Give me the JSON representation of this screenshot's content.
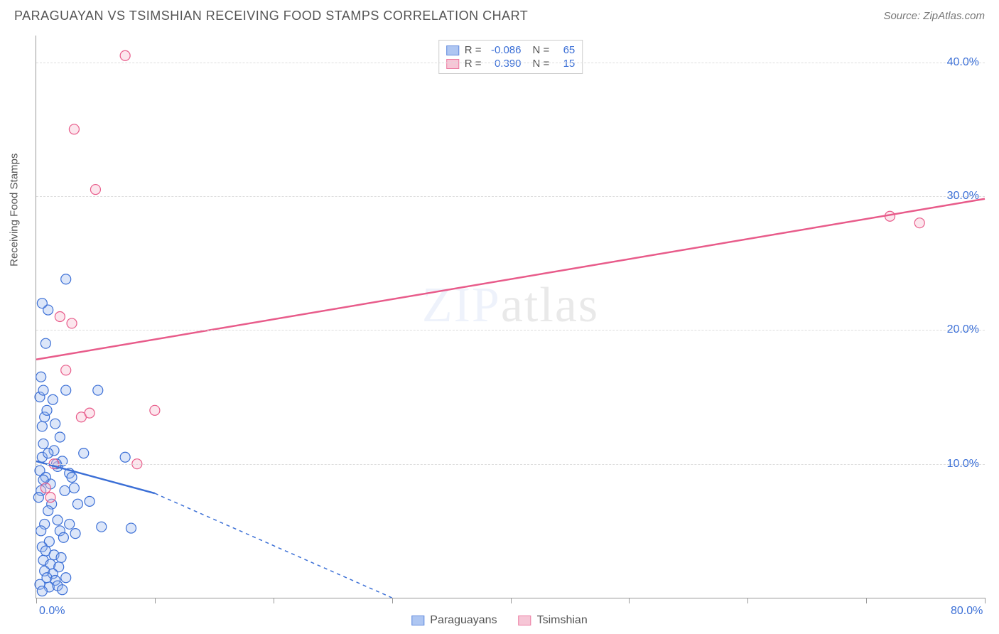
{
  "header": {
    "title": "PARAGUAYAN VS TSIMSHIAN RECEIVING FOOD STAMPS CORRELATION CHART",
    "source": "Source: ZipAtlas.com"
  },
  "watermark": {
    "part1": "ZIP",
    "part2": "atlas"
  },
  "chart": {
    "type": "scatter",
    "y_axis_title": "Receiving Food Stamps",
    "xlim": [
      0,
      80
    ],
    "ylim": [
      0,
      42
    ],
    "x_labels": [
      {
        "value": 0,
        "text": "0.0%"
      },
      {
        "value": 80,
        "text": "80.0%"
      }
    ],
    "x_ticks": [
      0,
      10,
      20,
      30,
      40,
      50,
      60,
      70,
      80
    ],
    "y_gridlines": [
      10,
      20,
      30,
      40
    ],
    "y_labels": [
      {
        "value": 10,
        "text": "10.0%"
      },
      {
        "value": 20,
        "text": "20.0%"
      },
      {
        "value": 30,
        "text": "30.0%"
      },
      {
        "value": 40,
        "text": "40.0%"
      }
    ],
    "background_color": "#ffffff",
    "grid_color": "#dddddd",
    "axis_color": "#999999",
    "label_color": "#3b6fd6",
    "marker_radius": 7,
    "marker_stroke_width": 1.2,
    "marker_fill_opacity": 0.35,
    "trend_line_width": 2.5,
    "trend_dash": "5,5",
    "series": [
      {
        "name": "Paraguayans",
        "color_stroke": "#3b6fd6",
        "color_fill": "#9ab8ef",
        "r_label": "R =",
        "r_value": "-0.086",
        "n_label": "N =",
        "n_value": "65",
        "trend": {
          "x1": 0,
          "y1": 10.2,
          "x2": 10,
          "y2": 7.8,
          "extend_x2": 30,
          "extend_y2": 0
        },
        "points": [
          [
            0.3,
            9.5
          ],
          [
            0.5,
            10.5
          ],
          [
            0.4,
            8.0
          ],
          [
            0.6,
            11.5
          ],
          [
            0.8,
            9.0
          ],
          [
            0.2,
            7.5
          ],
          [
            0.5,
            12.8
          ],
          [
            0.7,
            13.5
          ],
          [
            0.9,
            14.0
          ],
          [
            0.3,
            15.0
          ],
          [
            0.6,
            15.5
          ],
          [
            0.4,
            16.5
          ],
          [
            0.8,
            19.0
          ],
          [
            1.5,
            11.0
          ],
          [
            1.8,
            9.8
          ],
          [
            1.2,
            8.5
          ],
          [
            1.6,
            13.0
          ],
          [
            1.4,
            14.8
          ],
          [
            2.0,
            12.0
          ],
          [
            2.2,
            10.2
          ],
          [
            2.4,
            8.0
          ],
          [
            2.5,
            15.5
          ],
          [
            2.8,
            9.3
          ],
          [
            1.0,
            21.5
          ],
          [
            0.5,
            22.0
          ],
          [
            3.0,
            9.0
          ],
          [
            3.2,
            8.2
          ],
          [
            3.5,
            7.0
          ],
          [
            1.3,
            7.0
          ],
          [
            1.0,
            6.5
          ],
          [
            0.7,
            5.5
          ],
          [
            0.4,
            5.0
          ],
          [
            1.8,
            5.8
          ],
          [
            2.0,
            5.0
          ],
          [
            2.3,
            4.5
          ],
          [
            1.1,
            4.2
          ],
          [
            0.5,
            3.8
          ],
          [
            0.8,
            3.5
          ],
          [
            1.5,
            3.2
          ],
          [
            2.1,
            3.0
          ],
          [
            0.6,
            2.8
          ],
          [
            1.2,
            2.5
          ],
          [
            1.9,
            2.3
          ],
          [
            0.7,
            2.0
          ],
          [
            1.4,
            1.8
          ],
          [
            0.9,
            1.5
          ],
          [
            1.6,
            1.3
          ],
          [
            2.5,
            1.5
          ],
          [
            0.3,
            1.0
          ],
          [
            1.1,
            0.8
          ],
          [
            1.8,
            0.9
          ],
          [
            0.5,
            0.5
          ],
          [
            2.2,
            0.6
          ],
          [
            1.0,
            10.8
          ],
          [
            1.7,
            10.0
          ],
          [
            0.6,
            8.8
          ],
          [
            2.8,
            5.5
          ],
          [
            3.3,
            4.8
          ],
          [
            4.0,
            10.8
          ],
          [
            4.5,
            7.2
          ],
          [
            5.2,
            15.5
          ],
          [
            5.5,
            5.3
          ],
          [
            2.5,
            23.8
          ],
          [
            8.0,
            5.2
          ],
          [
            7.5,
            10.5
          ]
        ]
      },
      {
        "name": "Tsimshian",
        "color_stroke": "#e85b8a",
        "color_fill": "#f5b8cc",
        "r_label": "R =",
        "r_value": "0.390",
        "n_label": "N =",
        "n_value": "15",
        "trend": {
          "x1": 0,
          "y1": 17.8,
          "x2": 80,
          "y2": 29.8
        },
        "points": [
          [
            0.8,
            8.2
          ],
          [
            1.2,
            7.5
          ],
          [
            1.5,
            10.0
          ],
          [
            2.5,
            17.0
          ],
          [
            3.0,
            20.5
          ],
          [
            3.8,
            13.5
          ],
          [
            5.0,
            30.5
          ],
          [
            3.2,
            35.0
          ],
          [
            7.5,
            40.5
          ],
          [
            10.0,
            14.0
          ],
          [
            8.5,
            10.0
          ],
          [
            72.0,
            28.5
          ],
          [
            74.5,
            28.0
          ],
          [
            4.5,
            13.8
          ],
          [
            2.0,
            21.0
          ]
        ]
      }
    ]
  },
  "legend_bottom": [
    {
      "label": "Paraguayans",
      "stroke": "#3b6fd6",
      "fill": "#9ab8ef"
    },
    {
      "label": "Tsimshian",
      "stroke": "#e85b8a",
      "fill": "#f5b8cc"
    }
  ]
}
